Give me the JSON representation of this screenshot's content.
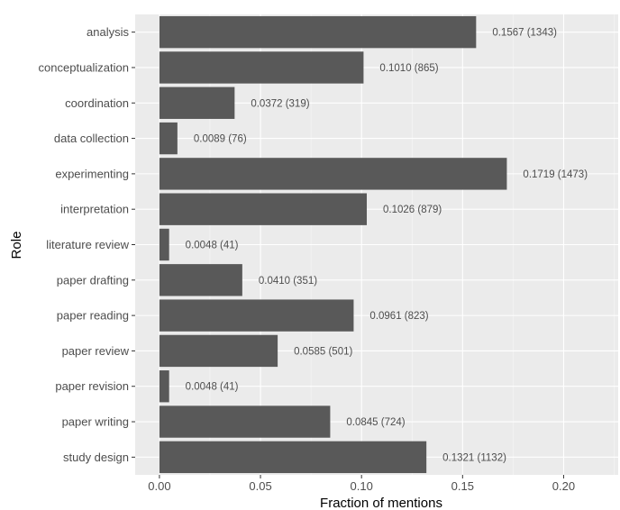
{
  "chart_data": {
    "type": "bar",
    "orientation": "horizontal",
    "xlabel": "Fraction of mentions",
    "ylabel": "Role",
    "xlim": [
      -0.012,
      0.227
    ],
    "x_ticks": [
      0.0,
      0.05,
      0.1,
      0.15,
      0.2
    ],
    "x_tick_labels": [
      "0.00",
      "0.05",
      "0.10",
      "0.15",
      "0.20"
    ],
    "grid": true,
    "categories": [
      "analysis",
      "conceptualization",
      "coordination",
      "data collection",
      "experimenting",
      "interpretation",
      "literature review",
      "paper drafting",
      "paper reading",
      "paper review",
      "paper revision",
      "paper writing",
      "study design"
    ],
    "values": [
      0.1567,
      0.101,
      0.0372,
      0.0089,
      0.1719,
      0.1026,
      0.0048,
      0.041,
      0.0961,
      0.0585,
      0.0048,
      0.0845,
      0.1321
    ],
    "counts": [
      1343,
      865,
      319,
      76,
      1473,
      879,
      41,
      351,
      823,
      501,
      41,
      724,
      1132
    ],
    "bar_labels": [
      "0.1567 (1343)",
      "0.1010 (865)",
      "0.0372 (319)",
      "0.0089 (76)",
      "0.1719 (1473)",
      "0.1026 (879)",
      "0.0048 (41)",
      "0.0410 (351)",
      "0.0961 (823)",
      "0.0585 (501)",
      "0.0048 (41)",
      "0.0845 (724)",
      "0.1321 (1132)"
    ],
    "colors": {
      "panel_background": "#ebebeb",
      "grid_major": "#ffffff",
      "bar": "#595959",
      "label_text": "#4d4d4d"
    }
  }
}
